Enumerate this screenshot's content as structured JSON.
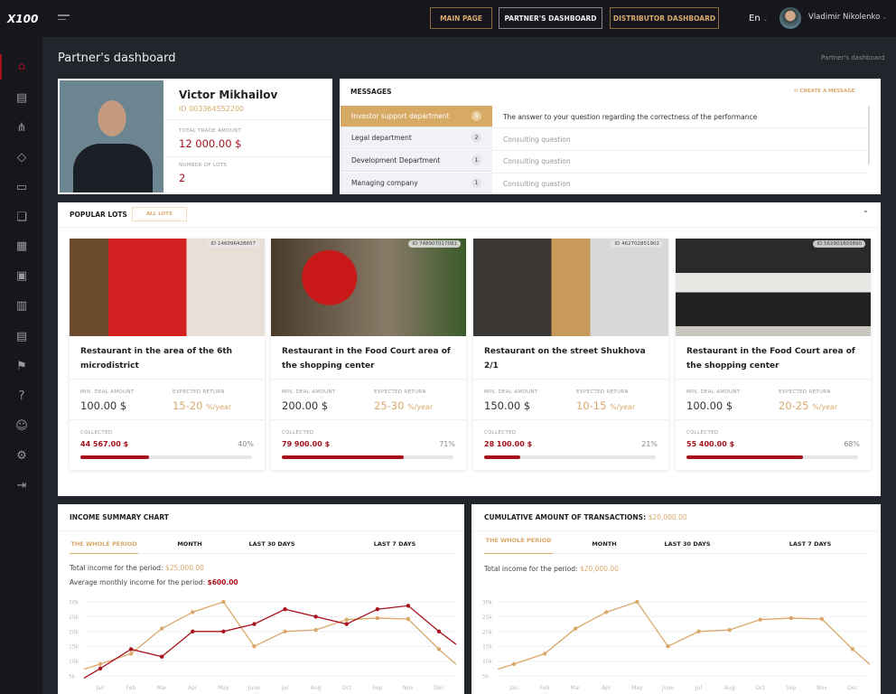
{
  "brand": {
    "logo": "X100"
  },
  "nav": {
    "main_page": "MAIN PAGE",
    "partners_dashboard": "PARTNER'S DASHBOARD",
    "distributor_dashboard": "DISTRIBUTOR DASHBOARD"
  },
  "header": {
    "language": "En",
    "user_name": "Vladimir Nikolenko"
  },
  "sidebar": {
    "items": [
      "home",
      "briefcase",
      "structure",
      "diamond",
      "wallet",
      "chat",
      "calendar",
      "cards",
      "contacts",
      "news",
      "promo",
      "help",
      "support",
      "settings",
      "logout"
    ],
    "active": "home"
  },
  "page": {
    "title": "Partner's dashboard",
    "breadcrumb": "Partner's dashboard"
  },
  "profile": {
    "name": "Victor Mikhailov",
    "id": "ID 003364552200",
    "trade_label": "TOTAL TRADE AMOUNT",
    "trade_value": "12 000.00 $",
    "lots_label": "NUMBER OF LOTS",
    "lots_value": "2"
  },
  "messages": {
    "title": "MESSAGES",
    "create": "CREATE A MESSAGE",
    "departments": [
      {
        "name": "Investor support department",
        "count": "8"
      },
      {
        "name": "Legal department",
        "count": "2"
      },
      {
        "name": "Development Department",
        "count": "1"
      },
      {
        "name": "Managing company",
        "count": "1"
      }
    ],
    "items": [
      "The answer to your question regarding the correctness of the performance",
      "Consulting question",
      "Consulting question",
      "Consulting question"
    ]
  },
  "lots": {
    "title": "POPULAR LOTS",
    "all": "ALL LOTS",
    "min_label": "MIN. DEAL AMOUNT",
    "ret_label": "EXPECTED RETURN",
    "coll_label": "COLLECTED",
    "unit": "%/year",
    "items": [
      {
        "id": "ID 146096428657",
        "title": "Restaurant in the area of the 6th microdistrict",
        "min": "100.00 $",
        "ret": "15-20",
        "collected": "44 567.00 $",
        "pct": "40%",
        "progress": 40
      },
      {
        "id": "ID 748907017081",
        "title": "Restaurant in the Food Court area of the shopping center",
        "min": "200.00 $",
        "ret": "25-30",
        "collected": "79 900.00 $",
        "pct": "71%",
        "progress": 71
      },
      {
        "id": "ID 462702851902",
        "title": "Restaurant on the street Shukhova 2/1",
        "min": "150.00 $",
        "ret": "10-15",
        "collected": "28 100.00 $",
        "pct": "21%",
        "progress": 21
      },
      {
        "id": "ID 562901803890",
        "title": "Restaurant in the Food Court area of the shopping center",
        "min": "100.00 $",
        "ret": "20-25",
        "collected": "55 400.00 $",
        "pct": "68%",
        "progress": 68
      }
    ]
  },
  "income": {
    "title": "INCOME SUMMARY CHART",
    "tabs": [
      "THE WHOLE PERIOD",
      "MONTH",
      "LAST 30 DAYS",
      "LAST 7 DAYS"
    ],
    "total_label": "Total income for the period:",
    "total": "$25,000.00",
    "avg_label": "Average monthly income for the period:",
    "avg": "$600.00"
  },
  "cumulative": {
    "title": "CUMULATIVE AMOUNT OF TRANSACTIONS:",
    "amount": "$20,000.00",
    "tabs": [
      "THE WHOLE PERIOD",
      "MONTH",
      "LAST 30 DAYS",
      "LAST 7 DAYS"
    ],
    "total_label": "Total income for the period:",
    "total": "$20,000.00"
  },
  "colors": {
    "gold": "#d9a86a",
    "red": "#a6121c"
  },
  "chart_data": [
    {
      "type": "line",
      "categories": [
        "Jan",
        "Feb",
        "Mar",
        "Apr",
        "May",
        "June",
        "Jul",
        "Aug",
        "Oct",
        "Sep",
        "Nov",
        "Dec"
      ],
      "yticks": [
        "5k",
        "10k",
        "15k",
        "20k",
        "25k",
        "30k"
      ],
      "ylim": [
        5000,
        30000
      ],
      "grid": true,
      "series": [
        {
          "color": "#d9a86a",
          "values": [
            9000,
            12500,
            21000,
            26500,
            30000,
            15000,
            20000,
            20500,
            24000,
            24500,
            24200,
            14000
          ]
        },
        {
          "color": "#a6121c",
          "values": [
            7500,
            14000,
            11500,
            20000,
            20000,
            22500,
            27500,
            25000,
            22500,
            27500,
            28700,
            20000
          ]
        }
      ]
    },
    {
      "type": "line",
      "categories": [
        "Jan",
        "Feb",
        "Mar",
        "Apr",
        "May",
        "June",
        "Jul",
        "Aug",
        "Oct",
        "Sep",
        "Nov",
        "Dec"
      ],
      "yticks": [
        "5k",
        "10k",
        "15k",
        "20k",
        "25k",
        "30k"
      ],
      "ylim": [
        5000,
        30000
      ],
      "grid": true,
      "series": [
        {
          "color": "#d9a86a",
          "values": [
            9000,
            12500,
            21000,
            26500,
            30000,
            15000,
            20000,
            20500,
            24000,
            24500,
            24200,
            14000
          ]
        }
      ]
    }
  ]
}
